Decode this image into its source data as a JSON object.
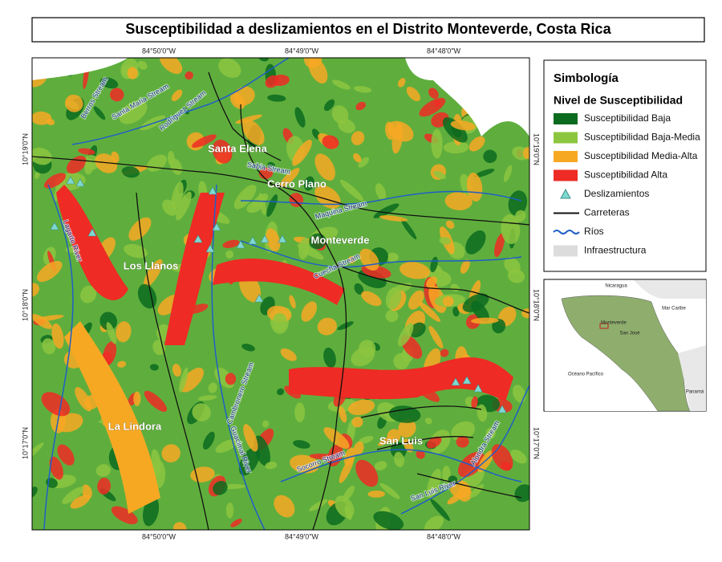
{
  "title": "Susceptibilidad a deslizamientos en el Distrito Monteverde, Costa Rica",
  "map": {
    "coordinates": {
      "top": [
        "84°50'0\"W",
        "84°49'0\"W",
        "84°48'0\"W"
      ],
      "bottom": [
        "84°50'0\"W",
        "84°49'0\"W",
        "84°48'0\"W"
      ],
      "left": [
        "10°19'0\"N",
        "10°18'0\"N",
        "10°17'0\"N"
      ],
      "right": [
        "10°19'0\"N",
        "10°18'0\"N",
        "10°17'0\"N"
      ]
    },
    "places": [
      "Santa Elena",
      "Cerro Plano",
      "Monteverde",
      "Los Llanos",
      "La Lindora",
      "San Luis"
    ],
    "streams": [
      "Berros Stream",
      "Santa Maria Stream",
      "Rodriguez Stream",
      "Sabia Stream",
      "Maquina Stream",
      "Cuecha Stream",
      "Lagarto River",
      "Cambronero Stream",
      "Guacimal River",
      "Socorro Stream",
      "San Luis River",
      "Alondra Stream"
    ]
  },
  "legend": {
    "title": "Simbología",
    "subtitle": "Nivel de Susceptibilidad",
    "items": [
      {
        "label": "Susceptibilidad Baja",
        "color": "#0b6b1e"
      },
      {
        "label": "Susceptibilidad Baja-Media",
        "color": "#8cc63f"
      },
      {
        "label": "Susceptibilidad Media-Alta",
        "color": "#f7a823"
      },
      {
        "label": "Susceptibilidad Alta",
        "color": "#ee2b24"
      },
      {
        "label": "Deslizamientos"
      },
      {
        "label": "Carreteras"
      },
      {
        "label": "Ríos"
      },
      {
        "label": "Infraestructura"
      }
    ]
  },
  "inset": {
    "labels": [
      "Nicaragua",
      "Mar Caribe",
      "Monteverde",
      "San José",
      "Océano Pacífico",
      "Panamá"
    ]
  }
}
